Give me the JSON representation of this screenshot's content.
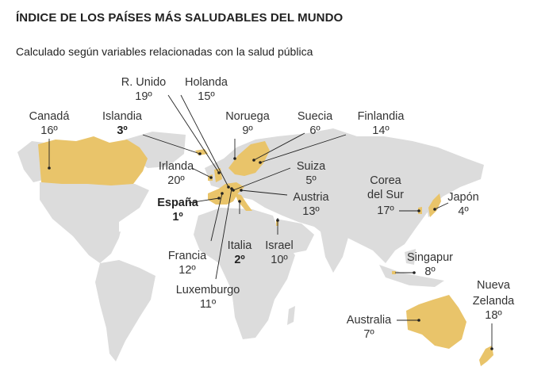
{
  "header": {
    "title": "ÍNDICE DE LOS PAÍSES MÁS SALUDABLES DEL MUNDO",
    "subtitle": "Calculado según variables relacionadas con la salud pública"
  },
  "colors": {
    "highlight": "#e9c46a",
    "land": "#dcdcdc",
    "text": "#333333"
  },
  "countries": [
    {
      "id": "reino-unido",
      "name": "R. Unido",
      "rank": "19º"
    },
    {
      "id": "holanda",
      "name": "Holanda",
      "rank": "15º"
    },
    {
      "id": "canada",
      "name": "Canadá",
      "rank": "16º"
    },
    {
      "id": "islandia",
      "name": "Islandia",
      "rank": "3º"
    },
    {
      "id": "noruega",
      "name": "Noruega",
      "rank": "9º"
    },
    {
      "id": "suecia",
      "name": "Suecia",
      "rank": "6º"
    },
    {
      "id": "finlandia",
      "name": "Finlandia",
      "rank": "14º"
    },
    {
      "id": "irlanda",
      "name": "Irlanda",
      "rank": "20º"
    },
    {
      "id": "suiza",
      "name": "Suiza",
      "rank": "5º"
    },
    {
      "id": "espana",
      "name": "España",
      "rank": "1º"
    },
    {
      "id": "austria",
      "name": "Austria",
      "rank": "13º"
    },
    {
      "id": "corea-del-sur",
      "name": "Corea\ndel Sur",
      "rank": "17º"
    },
    {
      "id": "japon",
      "name": "Japón",
      "rank": "4º"
    },
    {
      "id": "italia",
      "name": "Italia",
      "rank": "2º"
    },
    {
      "id": "israel",
      "name": "Israel",
      "rank": "10º"
    },
    {
      "id": "francia",
      "name": "Francia",
      "rank": "12º"
    },
    {
      "id": "singapur",
      "name": "Singapur",
      "rank": "8º"
    },
    {
      "id": "luxemburgo",
      "name": "Luxemburgo",
      "rank": "11º"
    },
    {
      "id": "nueva-zelanda",
      "name": "Nueva\nZelanda",
      "rank": "18º"
    },
    {
      "id": "australia",
      "name": "Australia",
      "rank": "7º"
    }
  ]
}
